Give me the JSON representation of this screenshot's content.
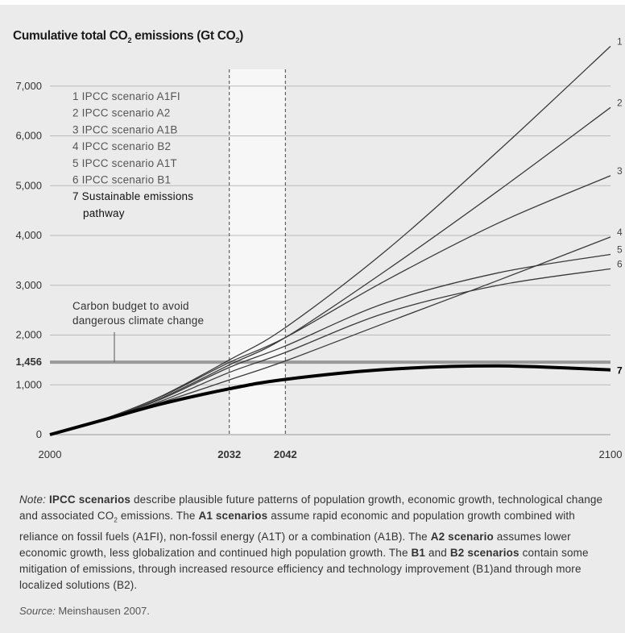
{
  "title": {
    "main": "Cumulative total CO",
    "sub1": "2",
    "mid": " emissions (Gt CO",
    "sub2": "2",
    "end": ")"
  },
  "chart_data": {
    "type": "line",
    "xlim": [
      2000,
      2100
    ],
    "ylim": [
      0,
      7800
    ],
    "y_ticks": [
      {
        "value": 0,
        "label": "0"
      },
      {
        "value": 1000,
        "label": "1,000"
      },
      {
        "value": 1456,
        "label": "1,456",
        "bold": true
      },
      {
        "value": 2000,
        "label": "2,000"
      },
      {
        "value": 3000,
        "label": "3,000"
      },
      {
        "value": 4000,
        "label": "4,000"
      },
      {
        "value": 5000,
        "label": "5,000"
      },
      {
        "value": 6000,
        "label": "6,000"
      },
      {
        "value": 7000,
        "label": "7,000"
      }
    ],
    "x_ticks": [
      {
        "value": 2000,
        "label": "2000",
        "bold": false
      },
      {
        "value": 2032,
        "label": "2032",
        "bold": true
      },
      {
        "value": 2042,
        "label": "2042",
        "bold": true
      },
      {
        "value": 2100,
        "label": "2100",
        "bold": false
      }
    ],
    "shaded_period": [
      2032,
      2042
    ],
    "carbon_budget": {
      "value": 1456,
      "label_line1": "Carbon budget to avoid",
      "label_line2": "dangerous climate change"
    },
    "legend": [
      {
        "text": "1 IPCC scenario A1FI",
        "strong": false
      },
      {
        "text": "2 IPCC scenario A2",
        "strong": false
      },
      {
        "text": "3 IPCC scenario A1B",
        "strong": false
      },
      {
        "text": "4 IPCC scenario B2",
        "strong": false
      },
      {
        "text": "5 IPCC scenario A1T",
        "strong": false
      },
      {
        "text": "6 IPCC scenario B1",
        "strong": false
      },
      {
        "text": "7 Sustainable emissions",
        "strong": true
      },
      {
        "text": "pathway",
        "strong": true,
        "indent": true
      }
    ],
    "series": [
      {
        "label": "1",
        "x": [
          2000,
          2010,
          2020,
          2032,
          2042,
          2060,
          2080,
          2100
        ],
        "y": [
          0,
          330,
          780,
          1500,
          2150,
          3700,
          5700,
          7800
        ]
      },
      {
        "label": "2",
        "x": [
          2000,
          2010,
          2020,
          2032,
          2042,
          2060,
          2080,
          2100
        ],
        "y": [
          0,
          320,
          740,
          1400,
          1950,
          3300,
          4900,
          6570
        ]
      },
      {
        "label": "3",
        "x": [
          2000,
          2010,
          2020,
          2032,
          2042,
          2060,
          2080,
          2100
        ],
        "y": [
          0,
          330,
          770,
          1450,
          1950,
          3100,
          4250,
          5200
        ]
      },
      {
        "label": "4",
        "x": [
          2000,
          2010,
          2020,
          2032,
          2042,
          2060,
          2080,
          2100
        ],
        "y": [
          0,
          300,
          650,
          1100,
          1480,
          2250,
          3100,
          3970
        ]
      },
      {
        "label": "5",
        "x": [
          2000,
          2010,
          2020,
          2032,
          2042,
          2060,
          2080,
          2100
        ],
        "y": [
          0,
          320,
          720,
          1350,
          1780,
          2650,
          3250,
          3620
        ]
      },
      {
        "label": "6",
        "x": [
          2000,
          2010,
          2020,
          2032,
          2042,
          2060,
          2080,
          2100
        ],
        "y": [
          0,
          310,
          680,
          1250,
          1650,
          2450,
          3000,
          3330
        ]
      },
      {
        "label": "7",
        "x": [
          2000,
          2010,
          2020,
          2032,
          2042,
          2060,
          2080,
          2100
        ],
        "y": [
          0,
          310,
          620,
          920,
          1110,
          1310,
          1380,
          1300
        ],
        "strong": true
      }
    ]
  },
  "note": {
    "n1": "Note:",
    "n2": " ",
    "n3": "IPCC scenarios",
    "n4": " describe plausible future patterns of population growth, economic growth, technological change and associated CO",
    "n5": "2",
    "n6": " emissions. The ",
    "n7": "A1 scenarios",
    "n8": " assume rapid economic and population growth combined with reliance on fossil fuels (A1FI), non-fossil energy (A1T) or a combination (A1B). The ",
    "n9": "A2 scenario",
    "n10": " assumes lower economic growth, less globalization and continued high population growth. The ",
    "n11": "B1",
    "n12": " and ",
    "n13": "B2 scenarios",
    "n14": " contain some mitigation of emissions, through increased resource efficiency and technology improvement (B1)and through more localized solutions (B2)."
  },
  "source": {
    "label": "Source:",
    "text": " Meinshausen 2007."
  }
}
